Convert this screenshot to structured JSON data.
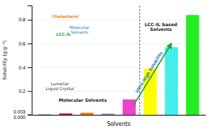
{
  "chart_data": {
    "type": "bar",
    "categories": [
      null,
      null,
      null,
      null,
      null,
      null,
      null,
      null
    ],
    "values": [
      0.003,
      0.012,
      0.018,
      0.01,
      0.13,
      0.39,
      0.57,
      0.84
    ],
    "colors": [
      "#1155ee",
      "#dd1111",
      "#ff7700",
      "#8888cc",
      "#ee44cc",
      "#ffff00",
      "#44eeee",
      "#22ee22"
    ],
    "xlabel": "Solvents",
    "ylabel": "Solubility (g·g⁻¹)",
    "ylim": [
      0.0,
      0.92
    ],
    "yticks": [
      {
        "value": 0.0,
        "label": "0.000"
      },
      0.003,
      0.2,
      0.4,
      0.6,
      0.8
    ],
    "annotations": [
      "Molecular Solvents",
      "LCC-IL based\nSolvents",
      "Ultra-High Solubility",
      "Cholesterol",
      "LCC-IL",
      "Molecular\nSolvents",
      "Lamellar\nLiquid Crystal"
    ]
  }
}
